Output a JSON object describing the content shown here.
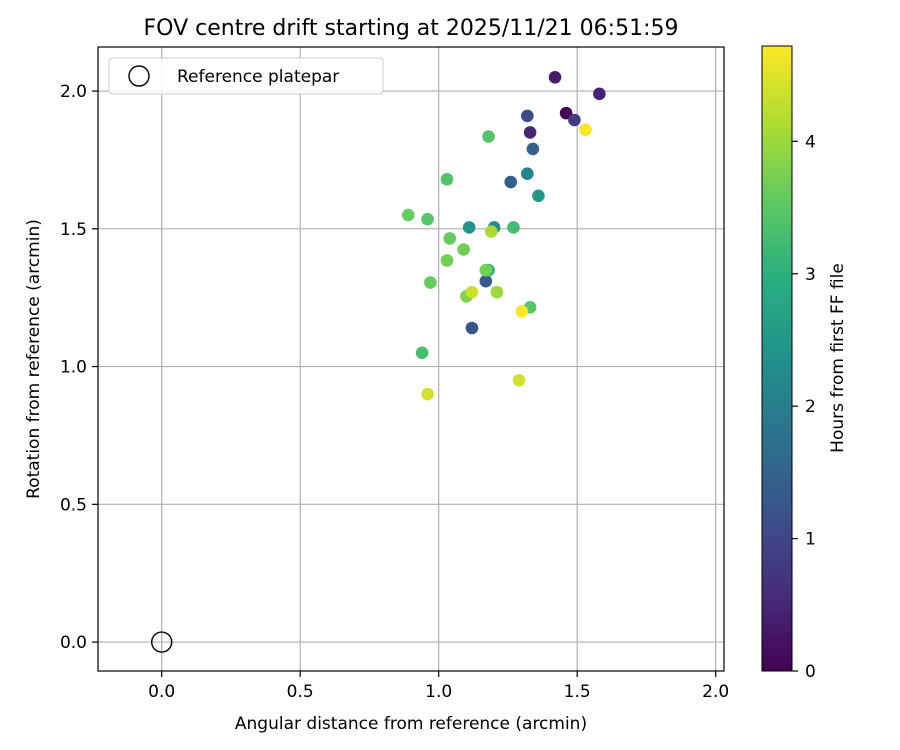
{
  "chart_data": {
    "type": "scatter",
    "title": "FOV centre drift starting at 2025/11/21 06:51:59",
    "xlabel": "Angular distance from reference (arcmin)",
    "ylabel": "Rotation from reference (arcmin)",
    "xlim": [
      -0.23,
      2.03
    ],
    "ylim": [
      -0.105,
      2.16
    ],
    "xticks": [
      0.0,
      0.5,
      1.0,
      1.5,
      2.0
    ],
    "xtick_labels": [
      "0.0",
      "0.5",
      "1.0",
      "1.5",
      "2.0"
    ],
    "yticks": [
      0.0,
      0.5,
      1.0,
      1.5,
      2.0
    ],
    "ytick_labels": [
      "0.0",
      "0.5",
      "1.0",
      "1.5",
      "2.0"
    ],
    "grid": true,
    "legend": {
      "position": "top-left",
      "entries": [
        {
          "label": "Reference platepar",
          "marker": "open-circle"
        }
      ]
    },
    "reference_point": {
      "x": 0.0,
      "y": 0.0
    },
    "colorbar": {
      "label": "Hours from first FF file",
      "colormap": "viridis",
      "range": [
        0,
        4.72
      ],
      "ticks": [
        0,
        1,
        2,
        3,
        4
      ],
      "tick_labels": [
        "0",
        "1",
        "2",
        "3",
        "4"
      ]
    },
    "points": [
      {
        "x": 1.46,
        "y": 1.92,
        "hours": 0.05
      },
      {
        "x": 1.42,
        "y": 2.05,
        "hours": 0.35
      },
      {
        "x": 1.58,
        "y": 1.99,
        "hours": 0.45
      },
      {
        "x": 1.33,
        "y": 1.85,
        "hours": 0.5
      },
      {
        "x": 1.49,
        "y": 1.895,
        "hours": 0.85
      },
      {
        "x": 1.32,
        "y": 1.91,
        "hours": 1.1
      },
      {
        "x": 1.12,
        "y": 1.14,
        "hours": 1.2
      },
      {
        "x": 1.17,
        "y": 1.31,
        "hours": 1.3
      },
      {
        "x": 1.26,
        "y": 1.67,
        "hours": 1.4
      },
      {
        "x": 1.34,
        "y": 1.79,
        "hours": 1.5
      },
      {
        "x": 1.32,
        "y": 1.7,
        "hours": 2.1
      },
      {
        "x": 1.2,
        "y": 1.505,
        "hours": 2.25
      },
      {
        "x": 1.11,
        "y": 1.505,
        "hours": 2.4
      },
      {
        "x": 1.36,
        "y": 1.62,
        "hours": 2.5
      },
      {
        "x": 1.18,
        "y": 1.35,
        "hours": 3.05
      },
      {
        "x": 1.27,
        "y": 1.505,
        "hours": 3.25
      },
      {
        "x": 0.94,
        "y": 1.05,
        "hours": 3.3
      },
      {
        "x": 1.18,
        "y": 1.835,
        "hours": 3.4
      },
      {
        "x": 1.33,
        "y": 1.215,
        "hours": 3.45
      },
      {
        "x": 0.96,
        "y": 1.535,
        "hours": 3.45
      },
      {
        "x": 1.03,
        "y": 1.68,
        "hours": 3.4
      },
      {
        "x": 0.89,
        "y": 1.55,
        "hours": 3.6
      },
      {
        "x": 1.04,
        "y": 1.465,
        "hours": 3.6
      },
      {
        "x": 0.97,
        "y": 1.305,
        "hours": 3.6
      },
      {
        "x": 1.17,
        "y": 1.35,
        "hours": 3.7
      },
      {
        "x": 1.09,
        "y": 1.425,
        "hours": 3.7
      },
      {
        "x": 1.03,
        "y": 1.385,
        "hours": 3.7
      },
      {
        "x": 1.1,
        "y": 1.255,
        "hours": 3.8
      },
      {
        "x": 1.21,
        "y": 1.27,
        "hours": 4.0
      },
      {
        "x": 1.19,
        "y": 1.49,
        "hours": 4.1
      },
      {
        "x": 1.12,
        "y": 1.27,
        "hours": 4.35
      },
      {
        "x": 1.29,
        "y": 0.95,
        "hours": 4.4
      },
      {
        "x": 0.96,
        "y": 0.9,
        "hours": 4.4
      },
      {
        "x": 1.3,
        "y": 1.2,
        "hours": 4.7
      },
      {
        "x": 1.53,
        "y": 1.86,
        "hours": 4.7
      }
    ]
  }
}
